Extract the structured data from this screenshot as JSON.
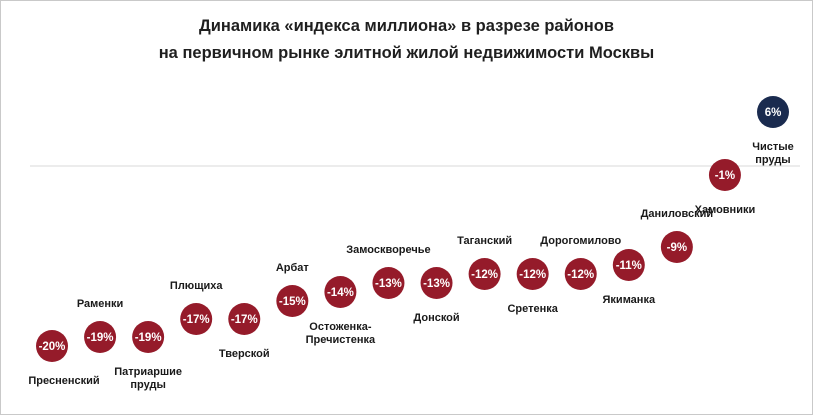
{
  "chart_data": {
    "type": "scatter",
    "title": "Динамика «индекса миллиона» в разрезе районов",
    "subtitle": "на первичном рынке элитной жилой недвижимости Москвы",
    "xlabel": "",
    "ylabel": "",
    "ylim": [
      -22,
      8
    ],
    "baseline": 0,
    "unit": "%",
    "colors": {
      "negative": "#951b2a",
      "positive": "#1a2b4f",
      "baseline": "#d9d9d9",
      "text": "#1a1a1a"
    },
    "points": [
      {
        "name": "Пресненский",
        "value": -20,
        "label": "-20%",
        "label_position": "below"
      },
      {
        "name": "Раменки",
        "value": -19,
        "label": "-19%",
        "label_position": "above"
      },
      {
        "name": "Патриаршие пруды",
        "label_lines": [
          "Патриаршие",
          "пруды"
        ],
        "value": -19,
        "label": "-19%",
        "label_position": "below"
      },
      {
        "name": "Плющиха",
        "value": -17,
        "label": "-17%",
        "label_position": "above"
      },
      {
        "name": "Тверской",
        "value": -17,
        "label": "-17%",
        "label_position": "below"
      },
      {
        "name": "Арбат",
        "value": -15,
        "label": "-15%",
        "label_position": "above"
      },
      {
        "name": "Остоженка-Пречистенка",
        "label_lines": [
          "Остоженка-",
          "Пречистенка"
        ],
        "value": -14,
        "label": "-14%",
        "label_position": "below"
      },
      {
        "name": "Замоскворечье",
        "value": -13,
        "label": "-13%",
        "label_position": "above"
      },
      {
        "name": "Донской",
        "value": -13,
        "label": "-13%",
        "label_position": "below"
      },
      {
        "name": "Таганский",
        "value": -12,
        "label": "-12%",
        "label_position": "above"
      },
      {
        "name": "Сретенка",
        "value": -12,
        "label": "-12%",
        "label_position": "below"
      },
      {
        "name": "Дорогомилово",
        "value": -12,
        "label": "-12%",
        "label_position": "above"
      },
      {
        "name": "Якиманка",
        "value": -11,
        "label": "-11%",
        "label_position": "below"
      },
      {
        "name": "Даниловский",
        "value": -9,
        "label": "-9%",
        "label_position": "above"
      },
      {
        "name": "Хамовники",
        "value": -1,
        "label": "-1%",
        "label_position": "below"
      },
      {
        "name": "Чистые пруды",
        "label_lines": [
          "Чистые",
          "пруды"
        ],
        "value": 6,
        "label": "6%",
        "label_position": "below"
      }
    ]
  }
}
